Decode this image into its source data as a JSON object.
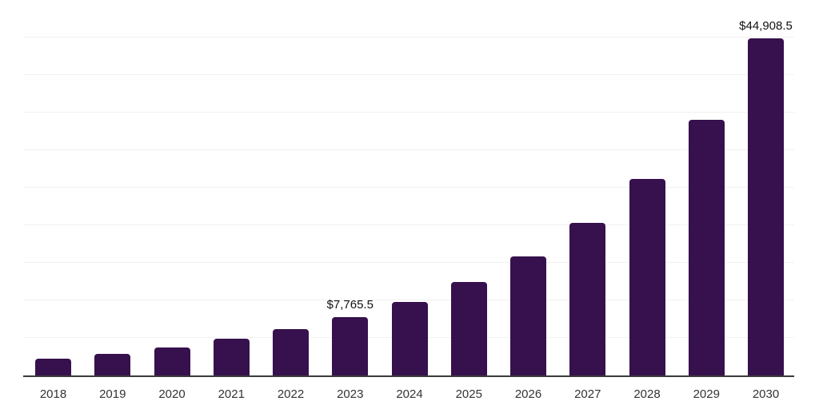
{
  "chart_data": {
    "type": "bar",
    "title": "",
    "xlabel": "",
    "ylabel": "",
    "categories": [
      "2018",
      "2019",
      "2020",
      "2021",
      "2022",
      "2023",
      "2024",
      "2025",
      "2026",
      "2027",
      "2028",
      "2029",
      "2030"
    ],
    "values": [
      2250,
      2900,
      3720,
      4930,
      6140,
      7765.5,
      9750,
      12420,
      15850,
      20290,
      26200,
      34100,
      44908.5
    ],
    "value_labels": [
      "",
      "",
      "",
      "",
      "",
      "$7,765.5",
      "",
      "",
      "",
      "",
      "",
      "",
      "$44,908.5"
    ],
    "ylim": [
      0,
      50000
    ],
    "gridline_interval": 5000,
    "grid": true,
    "legend": false,
    "y_axis_ticks_visible": false,
    "bar_color_name": "dark-purple",
    "colors": {
      "bar": "#36114d",
      "gridline": "#f1f1f1",
      "axis_line": "#3a3a3a",
      "x_tick_label": "#333333",
      "data_label": "#111111",
      "background": "#ffffff"
    }
  }
}
